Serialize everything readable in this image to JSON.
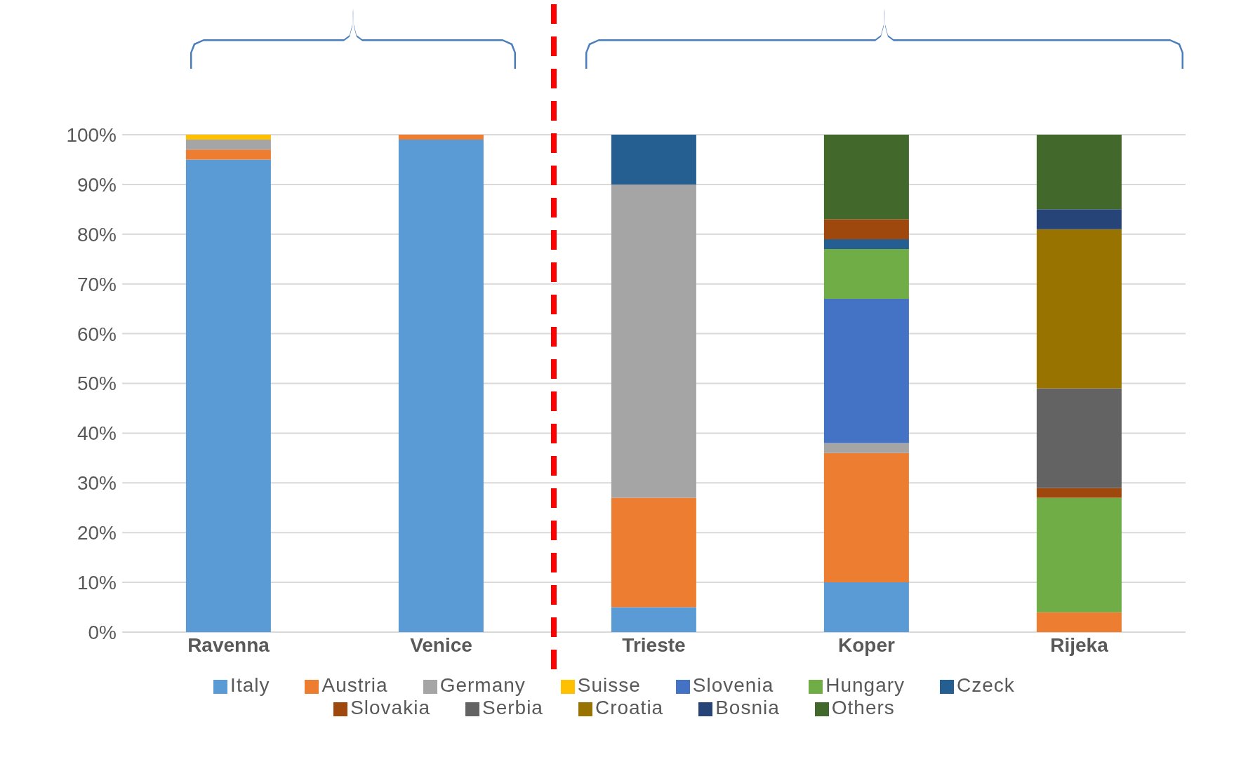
{
  "chart_data": {
    "type": "bar",
    "stacked": true,
    "categories": [
      "Ravenna",
      "Venice",
      "Trieste",
      "Koper",
      "Rijeka"
    ],
    "series": [
      {
        "name": "Italy",
        "color": "#5b9bd5",
        "values": [
          95,
          99,
          5,
          10,
          null
        ]
      },
      {
        "name": "Austria",
        "color": "#ed7d31",
        "values": [
          2,
          1,
          22,
          26,
          4
        ]
      },
      {
        "name": "Germany",
        "color": "#a5a5a5",
        "values": [
          2,
          null,
          63,
          2,
          null
        ]
      },
      {
        "name": "Suisse",
        "color": "#ffc000",
        "values": [
          1,
          null,
          null,
          null,
          null
        ]
      },
      {
        "name": "Slovenia",
        "color": "#4472c4",
        "values": [
          null,
          null,
          null,
          29,
          null
        ]
      },
      {
        "name": "Hungary",
        "color": "#70ad47",
        "values": [
          null,
          null,
          null,
          10,
          23
        ]
      },
      {
        "name": "Czeck",
        "color": "#255e91",
        "values": [
          null,
          null,
          10,
          2,
          null
        ]
      },
      {
        "name": "Slovakia",
        "color": "#9e480e",
        "values": [
          null,
          null,
          null,
          4,
          2
        ]
      },
      {
        "name": "Serbia",
        "color": "#636363",
        "values": [
          null,
          null,
          null,
          null,
          20
        ]
      },
      {
        "name": "Croatia",
        "color": "#997300",
        "values": [
          null,
          null,
          null,
          null,
          32
        ]
      },
      {
        "name": "Bosnia",
        "color": "#264478",
        "values": [
          null,
          null,
          null,
          null,
          4
        ]
      },
      {
        "name": "Others",
        "color": "#43682b",
        "values": [
          null,
          null,
          null,
          17,
          15
        ]
      }
    ],
    "ylim": [
      0,
      100
    ],
    "yticks": [
      {
        "value": 0,
        "label": "0%"
      },
      {
        "value": 10,
        "label": "10%"
      },
      {
        "value": 20,
        "label": "20%"
      },
      {
        "value": 30,
        "label": "30%"
      },
      {
        "value": 40,
        "label": "40%"
      },
      {
        "value": 50,
        "label": "50%"
      },
      {
        "value": 60,
        "label": "60%"
      },
      {
        "value": 70,
        "label": "70%"
      },
      {
        "value": 80,
        "label": "80%"
      },
      {
        "value": 90,
        "label": "90%"
      },
      {
        "value": 100,
        "label": "100%"
      }
    ],
    "grid": "y",
    "legend": "bottom"
  }
}
